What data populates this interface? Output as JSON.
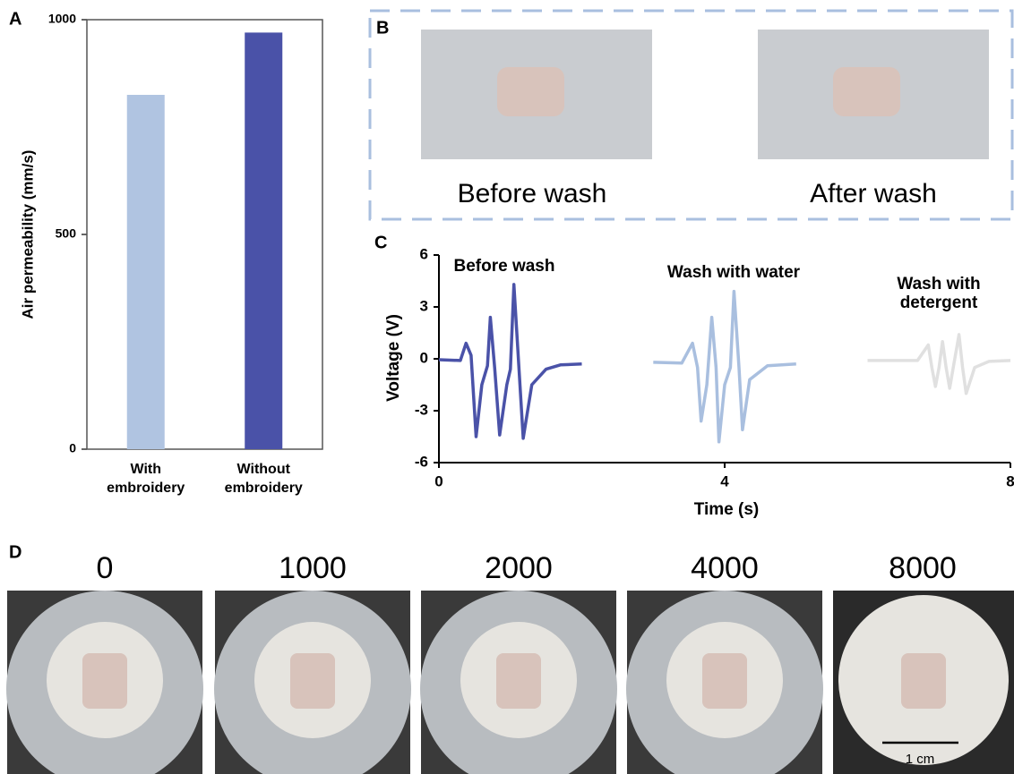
{
  "chart_data": [
    {
      "type": "bar",
      "panel_label": "A",
      "ylabel": "Air permeability (mm/s)",
      "categories": [
        "With embroidery",
        "Without embroidery"
      ],
      "values": [
        825,
        970
      ],
      "colors": [
        "#b0c4e1",
        "#4a52a8"
      ],
      "ylim": [
        0,
        1000
      ],
      "yticks": [
        0,
        500,
        1000
      ]
    },
    {
      "type": "line",
      "panel_label": "C",
      "xlabel": "Time (s)",
      "ylabel": "Voltage (V)",
      "xlim": [
        0,
        8
      ],
      "xticks": [
        0,
        4,
        8
      ],
      "ylim": [
        -6,
        6
      ],
      "yticks": [
        -6,
        -3,
        0,
        3,
        6
      ],
      "series": [
        {
          "name": "Before wash",
          "color": "#4a52a8",
          "x": [
            0,
            0.3,
            0.38,
            0.45,
            0.52,
            0.6,
            0.68,
            0.72,
            0.78,
            0.85,
            0.95,
            1.0,
            1.05,
            1.12,
            1.18,
            1.3,
            1.5,
            1.7,
            2.0
          ],
          "values": [
            -0.05,
            -0.1,
            0.9,
            0.2,
            -4.5,
            -1.5,
            -0.4,
            2.4,
            -0.5,
            -4.4,
            -1.5,
            -0.6,
            4.3,
            -0.5,
            -4.6,
            -1.5,
            -0.6,
            -0.35,
            -0.3
          ]
        },
        {
          "name": "Wash with water",
          "color": "#a9bfdf",
          "x": [
            3.0,
            3.4,
            3.55,
            3.62,
            3.67,
            3.75,
            3.82,
            3.88,
            3.92,
            4.0,
            4.08,
            4.13,
            4.2,
            4.25,
            4.35,
            4.6,
            5.0
          ],
          "values": [
            -0.2,
            -0.25,
            0.9,
            -0.5,
            -3.6,
            -1.5,
            2.4,
            -0.5,
            -4.8,
            -1.5,
            -0.5,
            3.9,
            -0.5,
            -4.1,
            -1.2,
            -0.4,
            -0.3
          ]
        },
        {
          "name": "Wash with detergent",
          "color": "#e0e0e0",
          "x": [
            6.0,
            6.7,
            6.85,
            6.9,
            6.95,
            7.0,
            7.05,
            7.1,
            7.15,
            7.2,
            7.28,
            7.33,
            7.38,
            7.5,
            7.7,
            8.0
          ],
          "values": [
            -0.1,
            -0.1,
            0.8,
            -0.5,
            -1.6,
            -0.5,
            1.0,
            -0.5,
            -1.7,
            -0.5,
            1.4,
            -0.5,
            -2.0,
            -0.5,
            -0.15,
            -0.1
          ]
        }
      ]
    }
  ],
  "photos": {
    "panel_b": {
      "label": "B",
      "captions": [
        "Before wash",
        "After wash"
      ]
    },
    "panel_d": {
      "label": "D",
      "titles": [
        "0",
        "1000",
        "2000",
        "4000",
        "8000"
      ],
      "scale_bar": "1 cm"
    }
  }
}
